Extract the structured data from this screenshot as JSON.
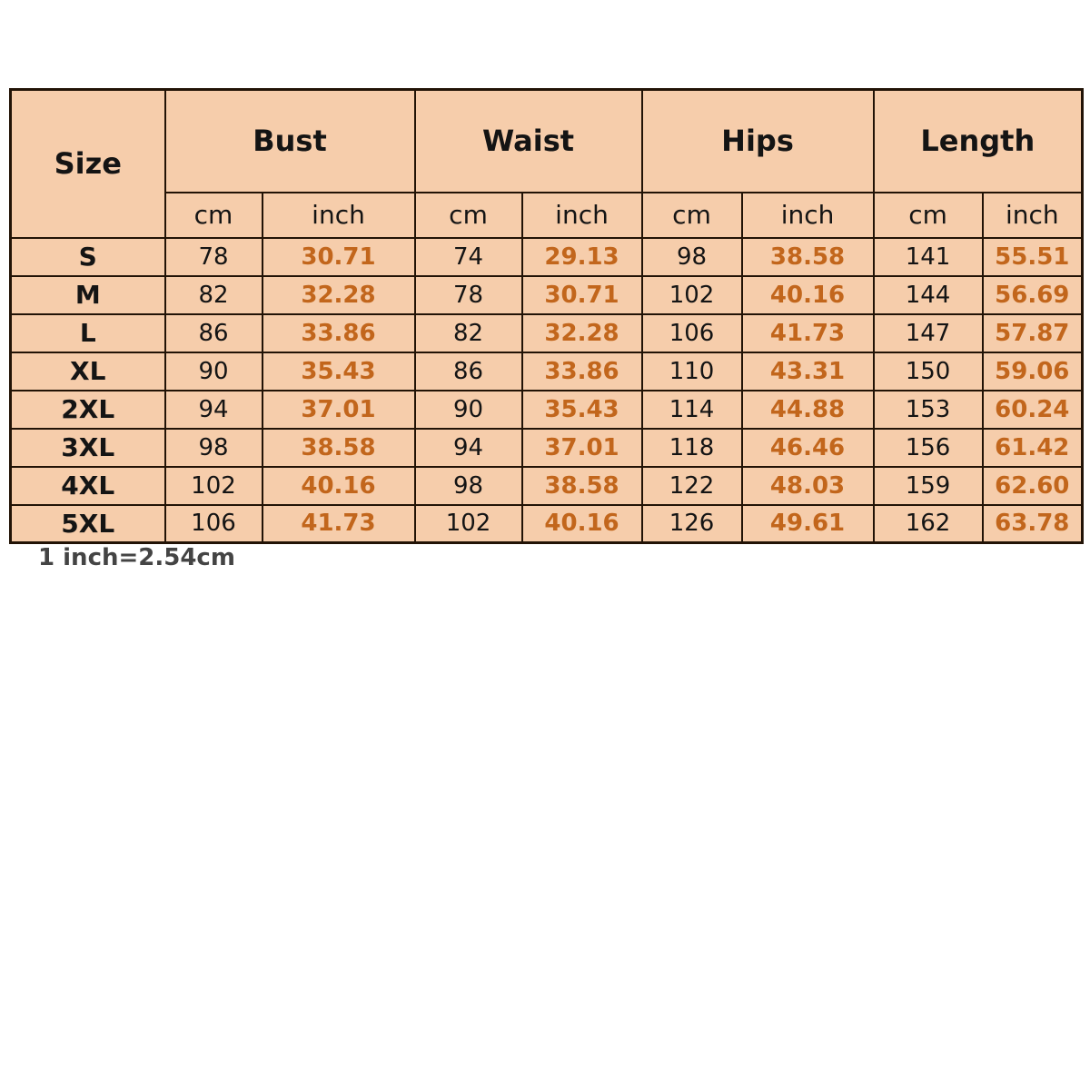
{
  "chart_data": {
    "type": "table",
    "size_column_header": "Size",
    "group_headers": [
      "Bust",
      "Waist",
      "Hips",
      "Length"
    ],
    "unit_headers": [
      "cm",
      "inch",
      "cm",
      "inch",
      "cm",
      "inch",
      "cm",
      "inch"
    ],
    "rows": [
      {
        "size": "S",
        "bust_cm": "78",
        "bust_inch": "30.71",
        "waist_cm": "74",
        "waist_inch": "29.13",
        "hips_cm": "98",
        "hips_inch": "38.58",
        "length_cm": "141",
        "length_inch": "55.51"
      },
      {
        "size": "M",
        "bust_cm": "82",
        "bust_inch": "32.28",
        "waist_cm": "78",
        "waist_inch": "30.71",
        "hips_cm": "102",
        "hips_inch": "40.16",
        "length_cm": "144",
        "length_inch": "56.69"
      },
      {
        "size": "L",
        "bust_cm": "86",
        "bust_inch": "33.86",
        "waist_cm": "82",
        "waist_inch": "32.28",
        "hips_cm": "106",
        "hips_inch": "41.73",
        "length_cm": "147",
        "length_inch": "57.87"
      },
      {
        "size": "XL",
        "bust_cm": "90",
        "bust_inch": "35.43",
        "waist_cm": "86",
        "waist_inch": "33.86",
        "hips_cm": "110",
        "hips_inch": "43.31",
        "length_cm": "150",
        "length_inch": "59.06"
      },
      {
        "size": "2XL",
        "bust_cm": "94",
        "bust_inch": "37.01",
        "waist_cm": "90",
        "waist_inch": "35.43",
        "hips_cm": "114",
        "hips_inch": "44.88",
        "length_cm": "153",
        "length_inch": "60.24"
      },
      {
        "size": "3XL",
        "bust_cm": "98",
        "bust_inch": "38.58",
        "waist_cm": "94",
        "waist_inch": "37.01",
        "hips_cm": "118",
        "hips_inch": "46.46",
        "length_cm": "156",
        "length_inch": "61.42"
      },
      {
        "size": "4XL",
        "bust_cm": "102",
        "bust_inch": "40.16",
        "waist_cm": "98",
        "waist_inch": "38.58",
        "hips_cm": "122",
        "hips_inch": "48.03",
        "length_cm": "159",
        "length_inch": "62.60"
      },
      {
        "size": "5XL",
        "bust_cm": "106",
        "bust_inch": "41.73",
        "waist_cm": "102",
        "waist_inch": "40.16",
        "hips_cm": "126",
        "hips_inch": "49.61",
        "length_cm": "162",
        "length_inch": "63.78"
      }
    ],
    "footnote_clipped": "1 inch=2.54cm"
  },
  "colors": {
    "cell_background": "#f6cdab",
    "grid_line": "#221306",
    "text_primary": "#141414",
    "inch_value": "#c2661c"
  }
}
